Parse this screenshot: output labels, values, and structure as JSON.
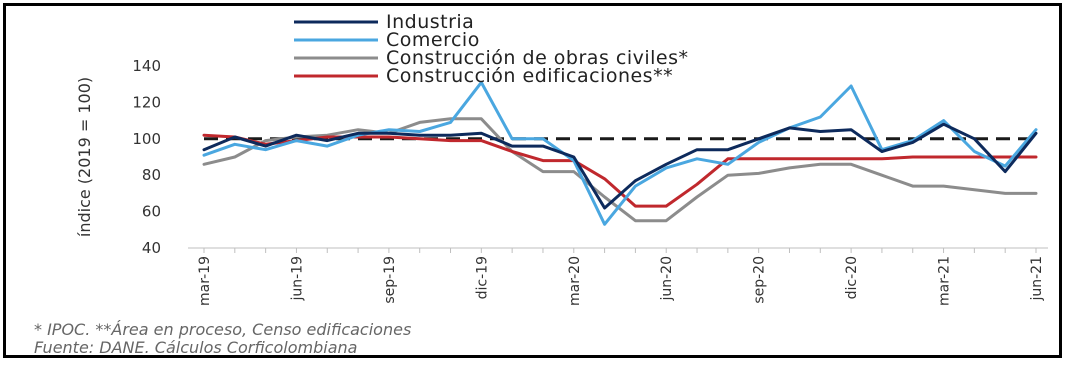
{
  "chart_data": {
    "type": "line",
    "title": "",
    "ylabel": "índice (2019 = 100)",
    "xlabel": "",
    "ylim": [
      40,
      140
    ],
    "yticks": [
      40,
      60,
      80,
      100,
      120,
      140
    ],
    "grid": false,
    "legend_position": "top",
    "reference_line": {
      "value": 100,
      "style": "dashed",
      "color": "#1a1a1a"
    },
    "x": [
      "mar-19",
      "abr-19",
      "may-19",
      "jun-19",
      "jul-19",
      "ago-19",
      "sep-19",
      "oct-19",
      "nov-19",
      "dic-19",
      "ene-20",
      "feb-20",
      "mar-20",
      "abr-20",
      "may-20",
      "jun-20",
      "jul-20",
      "ago-20",
      "sep-20",
      "oct-20",
      "nov-20",
      "dic-20",
      "ene-21",
      "feb-21",
      "mar-21",
      "abr-21",
      "may-21",
      "jun-21"
    ],
    "xtick_labels": [
      "mar-19",
      "jun-19",
      "sep-19",
      "dic-19",
      "mar-20",
      "jun-20",
      "sep-20",
      "dic-20",
      "mar-21",
      "jun-21"
    ],
    "series": [
      {
        "name": "Industria",
        "color": "#0d2a5c",
        "values": [
          94,
          101,
          96,
          102,
          99,
          103,
          103,
          102,
          102,
          103,
          96,
          96,
          90,
          62,
          77,
          86,
          94,
          94,
          100,
          106,
          104,
          105,
          93,
          98,
          108,
          100,
          82,
          103
        ]
      },
      {
        "name": "Comercio",
        "color": "#4aa7e0",
        "values": [
          91,
          97,
          94,
          99,
          96,
          102,
          105,
          104,
          109,
          131,
          100,
          100,
          88,
          53,
          74,
          84,
          89,
          86,
          98,
          106,
          112,
          129,
          94,
          99,
          110,
          93,
          85,
          105
        ]
      },
      {
        "name": "Construcción de obras civiles*",
        "color": "#8c8c8c",
        "values": [
          86,
          90,
          99,
          101,
          102,
          105,
          103,
          109,
          111,
          111,
          93,
          82,
          82,
          68,
          55,
          55,
          68,
          80,
          81,
          84,
          86,
          86,
          80,
          74,
          74,
          72,
          70,
          70
        ]
      },
      {
        "name": "Construcción edificaciones**",
        "color": "#c0282d",
        "values": [
          102,
          101,
          97,
          99,
          101,
          101,
          101,
          100,
          99,
          99,
          93,
          88,
          88,
          78,
          63,
          63,
          75,
          89,
          89,
          89,
          89,
          89,
          89,
          90,
          90,
          90,
          90,
          90
        ]
      }
    ]
  },
  "notes": {
    "footnote": "* IPOC. **Área en proceso, Censo edificaciones",
    "source": "Fuente: DANE. Cálculos Corficolombiana"
  }
}
